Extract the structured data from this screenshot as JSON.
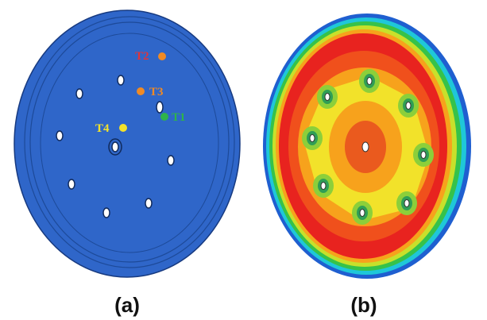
{
  "panel_a": {
    "caption": "(a)",
    "sensors": [
      "T1",
      "T2",
      "T3",
      "T4"
    ]
  },
  "panel_b": {
    "caption": "(b)"
  }
}
